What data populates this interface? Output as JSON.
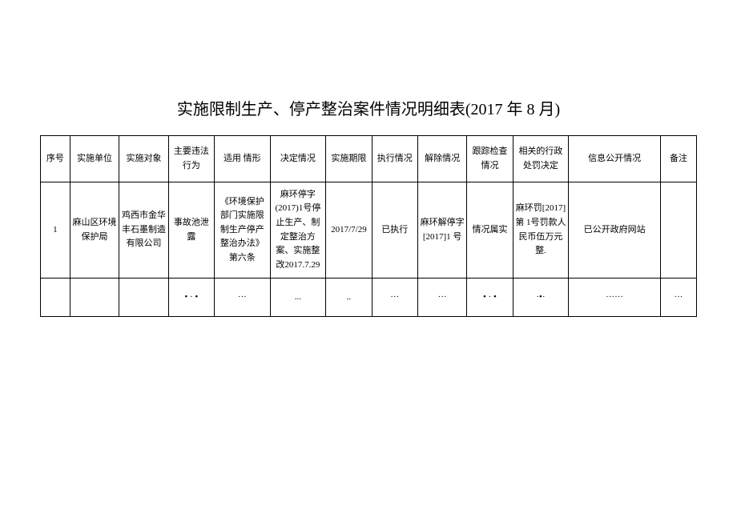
{
  "title": "实施限制生产、停产整治案件情况明细表(2017 年 8 月)",
  "table": {
    "headers": [
      "序号",
      "实施单位",
      "实施对象",
      "主要违法行为",
      "适用\n情形",
      "决定情况",
      "实施期限",
      "执行情况",
      "解除情况",
      "跟踪检查情况",
      "相关的行政处罚决定",
      "信息公开情况",
      "备注"
    ],
    "rows": [
      {
        "seq": "1",
        "unit": "麻山区环境保护局",
        "target": "鸡西市金华丰石墨制造有限公司",
        "violation": "事故池泄露",
        "applicable": "《环境保护部门实施限制生产停产整治办法》\n第六条",
        "decision": "麻环停字(2017)1号停止生产、制定整治方案、实施整改2017.7.29",
        "period": "2017/7/29",
        "execution": "已执行",
        "release": "麻环解停字[2017]1 号",
        "followup": "情况属实",
        "penalty": "麻环罚[2017]第 1号罚款人民币伍万元整.",
        "disclosure": "已公开政府网站",
        "remark": ""
      }
    ],
    "ellipsis": {
      "c0": "",
      "c1": "",
      "c2": "",
      "c3": "• · •",
      "c4": "···",
      "c5": "...",
      "c6": "..",
      "c7": "···",
      "c8": "···",
      "c9": "• · •",
      "c10": "·•·",
      "c11": "······",
      "c12": "···"
    }
  },
  "styles": {
    "background_color": "#ffffff",
    "border_color": "#000000",
    "text_color": "#000000",
    "title_fontsize": 20,
    "cell_fontsize": 11,
    "header_row_height": 58,
    "data_row_height": 120,
    "ellipsis_row_height": 48,
    "column_widths_pct": [
      4.5,
      7.5,
      7.5,
      7,
      8.5,
      8.5,
      7,
      7,
      7.5,
      7,
      8.5,
      14,
      5.5
    ]
  }
}
